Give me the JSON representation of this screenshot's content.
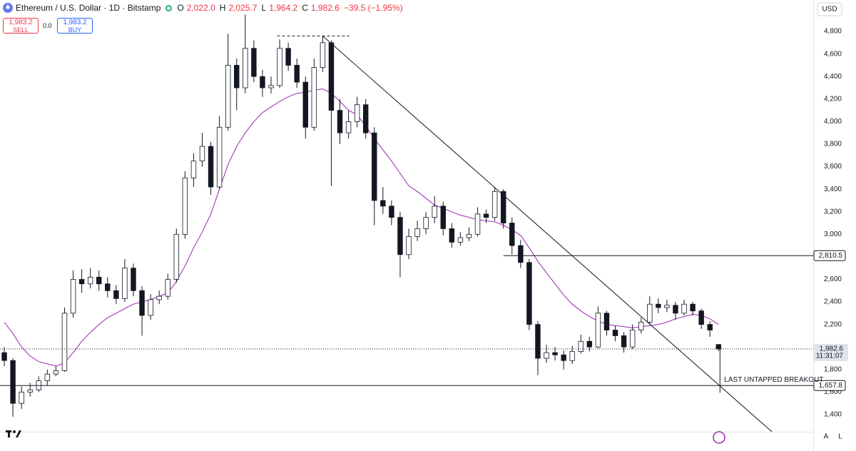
{
  "header": {
    "symbol": "Ethereum / U.S. Dollar · 1D · Bitstamp",
    "o_label": "O",
    "o": "2,022.0",
    "h_label": "H",
    "h": "2,025.7",
    "l_label": "L",
    "l": "1,964.2",
    "c_label": "C",
    "c": "1,982.6",
    "change": "−39.5 (−1.95%)"
  },
  "trade": {
    "sell_price": "1,983.2",
    "sell": "SELL",
    "spread": "0.0",
    "buy_price": "1,983.2",
    "buy": "BUY"
  },
  "currency": "USD",
  "scale_buttons": [
    "A",
    "L"
  ],
  "chart_data": {
    "type": "candlestick",
    "up_color": "#ffffff",
    "down_color": "#131722",
    "candles": [
      [
        1950,
        2000,
        1830,
        1880
      ],
      [
        1880,
        1900,
        1380,
        1500
      ],
      [
        1500,
        1650,
        1450,
        1600
      ],
      [
        1600,
        1680,
        1560,
        1620
      ],
      [
        1620,
        1740,
        1600,
        1700
      ],
      [
        1700,
        1800,
        1660,
        1760
      ],
      [
        1760,
        1830,
        1740,
        1790
      ],
      [
        1790,
        2350,
        1780,
        2300
      ],
      [
        2300,
        2680,
        2260,
        2600
      ],
      [
        2600,
        2690,
        2480,
        2560
      ],
      [
        2560,
        2700,
        2520,
        2620
      ],
      [
        2620,
        2680,
        2500,
        2560
      ],
      [
        2560,
        2620,
        2440,
        2500
      ],
      [
        2500,
        2550,
        2380,
        2430
      ],
      [
        2430,
        2780,
        2400,
        2700
      ],
      [
        2700,
        2740,
        2450,
        2500
      ],
      [
        2500,
        2540,
        2100,
        2280
      ],
      [
        2280,
        2470,
        2240,
        2420
      ],
      [
        2420,
        2500,
        2380,
        2450
      ],
      [
        2450,
        2650,
        2420,
        2600
      ],
      [
        2600,
        3050,
        2570,
        3000
      ],
      [
        3000,
        3560,
        2960,
        3500
      ],
      [
        3500,
        3720,
        3420,
        3650
      ],
      [
        3650,
        3900,
        3600,
        3780
      ],
      [
        3780,
        3820,
        3350,
        3420
      ],
      [
        3420,
        4050,
        3400,
        3950
      ],
      [
        3950,
        4780,
        3920,
        4500
      ],
      [
        4500,
        4560,
        4100,
        4300
      ],
      [
        4300,
        4950,
        4250,
        4650
      ],
      [
        4650,
        4720,
        4350,
        4400
      ],
      [
        4400,
        4460,
        4220,
        4300
      ],
      [
        4300,
        4400,
        4250,
        4320
      ],
      [
        4320,
        4730,
        4300,
        4650
      ],
      [
        4650,
        4700,
        4450,
        4500
      ],
      [
        4500,
        4560,
        4300,
        4350
      ],
      [
        4350,
        4400,
        3850,
        3950
      ],
      [
        3950,
        4560,
        3920,
        4480
      ],
      [
        4480,
        4760,
        4440,
        4700
      ],
      [
        4700,
        4720,
        3430,
        4100
      ],
      [
        4100,
        4200,
        3800,
        3900
      ],
      [
        3900,
        4100,
        3850,
        4000
      ],
      [
        4000,
        4220,
        3950,
        4150
      ],
      [
        4150,
        4200,
        3850,
        3900
      ],
      [
        3900,
        3950,
        3080,
        3300
      ],
      [
        3300,
        3420,
        3180,
        3250
      ],
      [
        3250,
        3300,
        3080,
        3150
      ],
      [
        3150,
        3200,
        2620,
        2820
      ],
      [
        2820,
        3050,
        2780,
        2980
      ],
      [
        2980,
        3120,
        2940,
        3050
      ],
      [
        3050,
        3200,
        3000,
        3150
      ],
      [
        3150,
        3340,
        3100,
        3250
      ],
      [
        3250,
        3290,
        2990,
        3050
      ],
      [
        3050,
        3100,
        2880,
        2930
      ],
      [
        2930,
        3020,
        2900,
        2970
      ],
      [
        2970,
        3060,
        2940,
        3000
      ],
      [
        3000,
        3240,
        2980,
        3180
      ],
      [
        3180,
        3220,
        3100,
        3150
      ],
      [
        3150,
        3420,
        3120,
        3380
      ],
      [
        3380,
        3400,
        3050,
        3100
      ],
      [
        3100,
        3150,
        2820,
        2900
      ],
      [
        2900,
        2950,
        2700,
        2750
      ],
      [
        2750,
        2780,
        2150,
        2200
      ],
      [
        2200,
        2230,
        1750,
        1900
      ],
      [
        1900,
        2020,
        1860,
        1950
      ],
      [
        1950,
        2000,
        1880,
        1930
      ],
      [
        1930,
        1970,
        1800,
        1880
      ],
      [
        1880,
        2010,
        1850,
        1960
      ],
      [
        1960,
        2110,
        1940,
        2050
      ],
      [
        2050,
        2090,
        1960,
        2000
      ],
      [
        2000,
        2360,
        1990,
        2300
      ],
      [
        2300,
        2320,
        2100,
        2150
      ],
      [
        2150,
        2190,
        2050,
        2100
      ],
      [
        2100,
        2130,
        1950,
        2000
      ],
      [
        2000,
        2200,
        1980,
        2150
      ],
      [
        2150,
        2260,
        2120,
        2220
      ],
      [
        2220,
        2450,
        2200,
        2380
      ],
      [
        2380,
        2430,
        2300,
        2350
      ],
      [
        2350,
        2420,
        2310,
        2370
      ],
      [
        2370,
        2400,
        2240,
        2300
      ],
      [
        2300,
        2420,
        2280,
        2380
      ],
      [
        2380,
        2400,
        2280,
        2320
      ],
      [
        2320,
        2340,
        2160,
        2200
      ],
      [
        2200,
        2230,
        2090,
        2150
      ],
      [
        2022.0,
        2025.7,
        1964.2,
        1982.6
      ]
    ],
    "ma": {
      "color": "#9c27b0",
      "values": [
        2220,
        2120,
        2000,
        1920,
        1870,
        1850,
        1830,
        1860,
        1950,
        2050,
        2130,
        2200,
        2260,
        2300,
        2340,
        2380,
        2400,
        2420,
        2450,
        2480,
        2580,
        2720,
        2880,
        3020,
        3180,
        3400,
        3620,
        3780,
        3900,
        4000,
        4080,
        4130,
        4180,
        4220,
        4250,
        4260,
        4280,
        4290,
        4250,
        4180,
        4100,
        4060,
        3960,
        3850,
        3750,
        3650,
        3540,
        3430,
        3380,
        3320,
        3260,
        3230,
        3200,
        3170,
        3150,
        3130,
        3120,
        3110,
        3080,
        3040,
        2990,
        2880,
        2760,
        2660,
        2560,
        2460,
        2380,
        2320,
        2270,
        2230,
        2200,
        2190,
        2180,
        2170,
        2180,
        2190,
        2200,
        2220,
        2250,
        2270,
        2290,
        2280,
        2250,
        2200
      ]
    },
    "xlim": [
      -0.5,
      94
    ],
    "ylim": [
      1248,
      5079
    ],
    "yticks": [
      {
        "value": 1400,
        "label": "1,400"
      },
      {
        "value": 1600,
        "label": "1,600"
      },
      {
        "value": 1800,
        "label": "1,800"
      },
      {
        "value": 2000,
        "label": "2,000"
      },
      {
        "value": 2200,
        "label": "2,200"
      },
      {
        "value": 2400,
        "label": "2,400"
      },
      {
        "value": 2600,
        "label": "2,600"
      },
      {
        "value": 2800,
        "label": "2,800"
      },
      {
        "value": 3000,
        "label": "3,000"
      },
      {
        "value": 3200,
        "label": "3,200"
      },
      {
        "value": 3400,
        "label": "3,400"
      },
      {
        "value": 3600,
        "label": "3,600"
      },
      {
        "value": 3800,
        "label": "3,800"
      },
      {
        "value": 4000,
        "label": "4,000"
      },
      {
        "value": 4200,
        "label": "4,200"
      },
      {
        "value": 4400,
        "label": "4,400"
      },
      {
        "value": 4600,
        "label": "4,600"
      },
      {
        "value": 4800,
        "label": "4,800"
      }
    ],
    "price_line": {
      "value": 1982.6,
      "label": "1,982.6",
      "countdown": "11:31:07"
    },
    "levels": [
      {
        "value": 2810.5,
        "label": "2,810.5",
        "from": 58
      },
      {
        "value": 1657.8,
        "label": "1,657.8",
        "from": -0.5
      }
    ],
    "trendline": [
      [
        37,
        4760
      ],
      [
        89.2,
        1248
      ]
    ],
    "top_line": {
      "value": 4760,
      "from": 31.7,
      "to": 40.1
    },
    "annotation": "LAST UNTAPPED BREAKOUT"
  }
}
